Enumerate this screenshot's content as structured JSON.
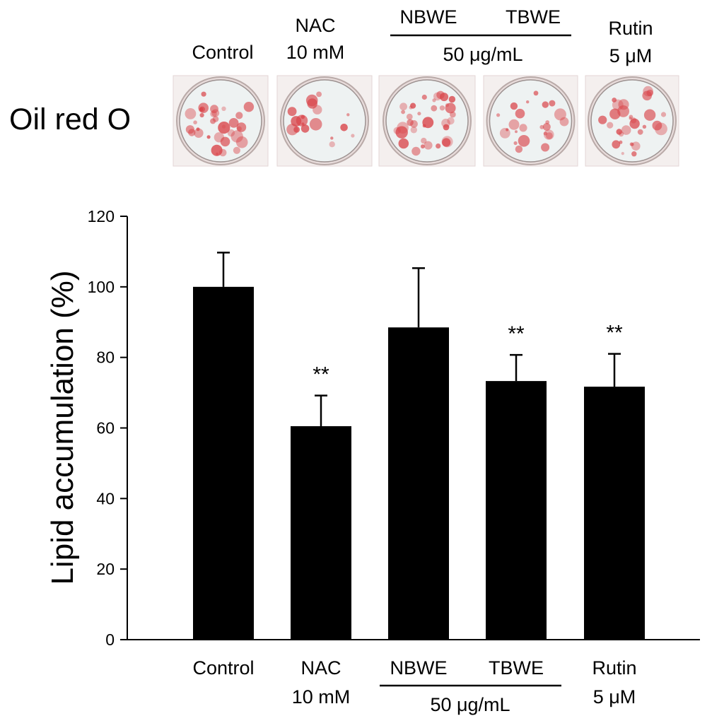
{
  "staining": {
    "row_label": "Oil red O",
    "header": {
      "control": "Control",
      "nac_line1": "NAC",
      "nac_line2": "10 mM",
      "nbwe": "NBWE",
      "tbwe": "TBWE",
      "group_conc": "50 μg/mL",
      "rutin_line1": "Rutin",
      "rutin_line2": "5 μM"
    },
    "well_color": "#d9454a",
    "well_background": "#eef2f2"
  },
  "chart_data": {
    "type": "bar",
    "categories": [
      "Control",
      "NAC",
      "NBWE",
      "TBWE",
      "Rutin"
    ],
    "category_sublabels": [
      "",
      "10 mM",
      "",
      "",
      "5 μM"
    ],
    "group_label": "50 μg/mL",
    "values": [
      100,
      60.5,
      88.5,
      73.3,
      71.7
    ],
    "error_upper": [
      9.7,
      8.7,
      16.8,
      7.4,
      9.3
    ],
    "annotations": [
      "",
      "**",
      "",
      "**",
      "**"
    ],
    "ylabel": "Lipid accumulation (%)",
    "xlabel": "",
    "ylim": [
      0,
      120
    ],
    "yticks": [
      0,
      20,
      40,
      60,
      80,
      100,
      120
    ],
    "bar_color": "#000000",
    "grid": false
  }
}
